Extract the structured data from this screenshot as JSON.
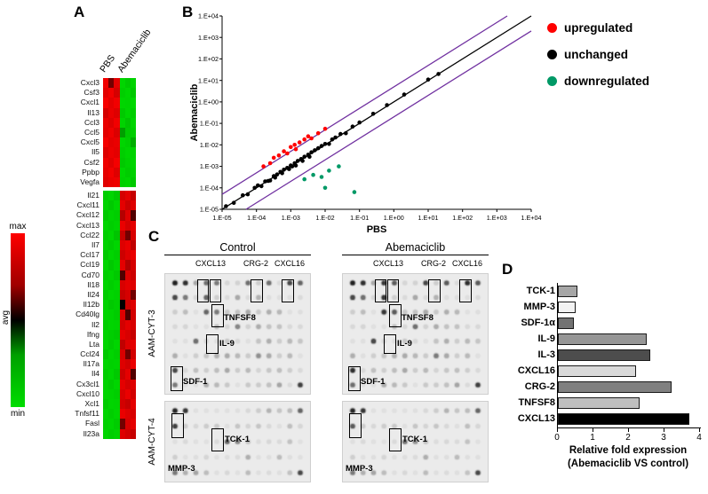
{
  "figure": {
    "panel_labels": {
      "a": "A",
      "b": "B",
      "c": "C",
      "d": "D"
    }
  },
  "panel_c": {
    "groups": [
      "Control",
      "Abemaciclib"
    ],
    "top_col_labels": [
      "CXCL13",
      "CRG-2",
      "CXCL16"
    ],
    "row_labels": [
      "AAM-CYT-3",
      "AAM-CYT-4"
    ],
    "top_annotations": [
      "TNFSF8",
      "IL-9",
      "SDF-1"
    ],
    "bottom_annotations": [
      "MMP-3",
      "TCK-1"
    ]
  },
  "chart_data": [
    {
      "type": "heatmap",
      "title": "Cytokine expression heatmap PBS vs Abemaciclib",
      "columns": [
        "PBS",
        "Abemaciclib"
      ],
      "colorscale": {
        "labels": [
          "max",
          "avg",
          "min"
        ],
        "max_color": "#ff0000",
        "mid_color": "#000000",
        "min_color": "#00dd00"
      },
      "rows": [
        {
          "gene": "Cxcl3",
          "values": [
            0.95,
            0.6,
            0.9,
            0.05,
            0.1,
            0.06
          ]
        },
        {
          "gene": "Csf3",
          "values": [
            0.9,
            0.95,
            0.85,
            0.08,
            0.05,
            0.1
          ]
        },
        {
          "gene": "Cxcl1",
          "values": [
            0.97,
            0.9,
            0.95,
            0.05,
            0.06,
            0.04
          ]
        },
        {
          "gene": "Il13",
          "values": [
            0.85,
            0.92,
            0.88,
            0.1,
            0.05,
            0.08
          ]
        },
        {
          "gene": "Ccl3",
          "values": [
            0.92,
            0.88,
            0.95,
            0.06,
            0.12,
            0.05
          ]
        },
        {
          "gene": "Ccl5",
          "values": [
            0.9,
            0.94,
            0.87,
            0.25,
            0.1,
            0.08
          ]
        },
        {
          "gene": "Cxcl5",
          "values": [
            0.96,
            0.9,
            0.92,
            0.05,
            0.08,
            0.2
          ]
        },
        {
          "gene": "Il5",
          "values": [
            0.88,
            0.93,
            0.9,
            0.08,
            0.05,
            0.06
          ]
        },
        {
          "gene": "Csf2",
          "values": [
            0.94,
            0.89,
            0.96,
            0.1,
            0.07,
            0.05
          ]
        },
        {
          "gene": "Ppbp",
          "values": [
            0.91,
            0.95,
            0.88,
            0.05,
            0.09,
            0.07
          ]
        },
        {
          "gene": "Vegfa",
          "values": [
            0.89,
            0.92,
            0.94,
            0.07,
            0.05,
            0.1
          ]
        },
        {
          "gene": "Il21",
          "values": [
            0.08,
            0.05,
            0.1,
            0.85,
            0.9,
            0.8
          ]
        },
        {
          "gene": "Cxcl11",
          "values": [
            0.06,
            0.1,
            0.05,
            0.9,
            0.82,
            0.88
          ]
        },
        {
          "gene": "Cxcl12",
          "values": [
            0.1,
            0.06,
            0.08,
            0.75,
            0.88,
            0.55
          ]
        },
        {
          "gene": "Cxcl13",
          "values": [
            0.05,
            0.08,
            0.06,
            0.92,
            0.85,
            0.9
          ]
        },
        {
          "gene": "Ccl22",
          "values": [
            0.08,
            0.05,
            0.12,
            0.8,
            0.6,
            0.86
          ]
        },
        {
          "gene": "Il7",
          "values": [
            0.06,
            0.09,
            0.05,
            0.88,
            0.92,
            0.78
          ]
        },
        {
          "gene": "Ccl17",
          "values": [
            0.1,
            0.05,
            0.08,
            0.82,
            0.88,
            0.92
          ]
        },
        {
          "gene": "Ccl19",
          "values": [
            0.05,
            0.1,
            0.06,
            0.9,
            0.75,
            0.85
          ]
        },
        {
          "gene": "Cd70",
          "values": [
            0.08,
            0.06,
            0.1,
            0.55,
            0.88,
            0.82
          ]
        },
        {
          "gene": "Il18",
          "values": [
            0.05,
            0.08,
            0.05,
            0.86,
            0.9,
            0.88
          ]
        },
        {
          "gene": "Il24",
          "values": [
            0.09,
            0.05,
            0.07,
            0.8,
            0.85,
            0.6
          ]
        },
        {
          "gene": "Il12b",
          "values": [
            0.06,
            0.1,
            0.08,
            0.5,
            0.82,
            0.88
          ]
        },
        {
          "gene": "Cd40lg",
          "values": [
            0.05,
            0.06,
            0.09,
            0.88,
            0.55,
            0.84
          ]
        },
        {
          "gene": "Il2",
          "values": [
            0.08,
            0.05,
            0.06,
            0.84,
            0.9,
            0.86
          ]
        },
        {
          "gene": "Ifng",
          "values": [
            0.06,
            0.08,
            0.1,
            0.9,
            0.86,
            0.8
          ]
        },
        {
          "gene": "Lta",
          "values": [
            0.05,
            0.09,
            0.05,
            0.78,
            0.88,
            0.9
          ]
        },
        {
          "gene": "Ccl24",
          "values": [
            0.1,
            0.05,
            0.08,
            0.86,
            0.6,
            0.84
          ]
        },
        {
          "gene": "Il17a",
          "values": [
            0.05,
            0.07,
            0.06,
            0.88,
            0.84,
            0.92
          ]
        },
        {
          "gene": "Il4",
          "values": [
            0.08,
            0.05,
            0.1,
            0.82,
            0.9,
            0.55
          ]
        },
        {
          "gene": "Cx3cl1",
          "values": [
            0.06,
            0.09,
            0.05,
            0.9,
            0.85,
            0.88
          ]
        },
        {
          "gene": "Cxcl10",
          "values": [
            0.05,
            0.06,
            0.08,
            0.86,
            0.92,
            0.84
          ]
        },
        {
          "gene": "Xcl1",
          "values": [
            0.09,
            0.05,
            0.06,
            0.84,
            0.8,
            0.9
          ]
        },
        {
          "gene": "Tnfsf11",
          "values": [
            0.05,
            0.08,
            0.05,
            0.92,
            0.88,
            0.86
          ]
        },
        {
          "gene": "Fasl",
          "values": [
            0.07,
            0.05,
            0.09,
            0.6,
            0.86,
            0.9
          ]
        },
        {
          "gene": "Il23a",
          "values": [
            0.05,
            0.08,
            0.06,
            0.88,
            0.84,
            0.8
          ]
        }
      ]
    },
    {
      "type": "scatter",
      "xlabel": "PBS",
      "ylabel": "Abemaciclib",
      "xscale": "log",
      "yscale": "log",
      "xlim": [
        1e-05,
        10000.0
      ],
      "ylim": [
        1e-05,
        10000.0
      ],
      "tick_labels": [
        "1.E-05",
        "1.E-04",
        "1.E-03",
        "1.E-02",
        "1.E-01",
        "1.E+00",
        "1.E+01",
        "1.E+02",
        "1.E+03",
        "1.E+04"
      ],
      "lines": [
        {
          "name": "identity",
          "color": "#000000",
          "factor": 1
        },
        {
          "name": "upper-bound",
          "color": "#7030a0",
          "factor": 5
        },
        {
          "name": "lower-bound",
          "color": "#7030a0",
          "factor": 0.2
        }
      ],
      "series": [
        {
          "name": "unchanged",
          "color": "#000000",
          "points": [
            [
              1.3e-05,
              1.4e-05
            ],
            [
              2.2e-05,
              2e-05
            ],
            [
              4e-05,
              4.5e-05
            ],
            [
              5.6e-05,
              5e-05
            ],
            [
              8.9e-05,
              0.0001
            ],
            [
              0.00011,
              0.00013
            ],
            [
              0.00014,
              0.00012
            ],
            [
              0.00018,
              0.0002
            ],
            [
              0.00022,
              0.00021
            ],
            [
              0.00025,
              0.00022
            ],
            [
              0.00032,
              0.00035
            ],
            [
              0.00035,
              0.0003
            ],
            [
              0.0004,
              0.00042
            ],
            [
              0.0005,
              0.00055
            ],
            [
              0.00056,
              0.00048
            ],
            [
              0.00063,
              0.0007
            ],
            [
              0.00079,
              0.00085
            ],
            [
              0.00089,
              0.00075
            ],
            [
              0.001,
              0.0011
            ],
            [
              0.0011,
              0.001
            ],
            [
              0.0013,
              0.0014
            ],
            [
              0.0014,
              0.0011
            ],
            [
              0.0016,
              0.0018
            ],
            [
              0.002,
              0.0022
            ],
            [
              0.0022,
              0.0018
            ],
            [
              0.0025,
              0.0028
            ],
            [
              0.0032,
              0.0035
            ],
            [
              0.0035,
              0.0028
            ],
            [
              0.004,
              0.0045
            ],
            [
              0.005,
              0.0056
            ],
            [
              0.0063,
              0.007
            ],
            [
              0.0079,
              0.0089
            ],
            [
              0.01,
              0.011
            ],
            [
              0.013,
              0.011
            ],
            [
              0.016,
              0.018
            ],
            [
              0.02,
              0.022
            ],
            [
              0.028,
              0.032
            ],
            [
              0.04,
              0.035
            ],
            [
              0.063,
              0.071
            ],
            [
              0.1,
              0.11
            ],
            [
              0.25,
              0.28
            ],
            [
              0.63,
              0.71
            ],
            [
              2.0,
              2.2
            ],
            [
              10,
              11
            ],
            [
              20,
              20
            ]
          ]
        },
        {
          "name": "upregulated",
          "color": "#ff0000",
          "points": [
            [
              0.00016,
              0.001
            ],
            [
              0.00025,
              0.0014
            ],
            [
              0.00032,
              0.0025
            ],
            [
              0.00045,
              0.0032
            ],
            [
              0.00063,
              0.005
            ],
            [
              0.00079,
              0.004
            ],
            [
              0.001,
              0.0079
            ],
            [
              0.0013,
              0.01
            ],
            [
              0.0014,
              0.0063
            ],
            [
              0.0018,
              0.013
            ],
            [
              0.0025,
              0.018
            ],
            [
              0.0032,
              0.025
            ],
            [
              0.004,
              0.02
            ],
            [
              0.0063,
              0.035
            ],
            [
              0.01,
              0.056
            ]
          ]
        },
        {
          "name": "downregulated",
          "color": "#009966",
          "points": [
            [
              0.0025,
              0.00025
            ],
            [
              0.0045,
              0.0004
            ],
            [
              0.0079,
              0.00032
            ],
            [
              0.013,
              0.00063
            ],
            [
              0.025,
              0.001
            ],
            [
              0.01,
              0.0001
            ],
            [
              0.071,
              6.3e-05
            ]
          ]
        }
      ],
      "legend": [
        "upregulated",
        "unchanged",
        "downregulated"
      ],
      "legend_colors": [
        "#ff0000",
        "#000000",
        "#009966"
      ]
    },
    {
      "type": "bar",
      "orientation": "horizontal",
      "categories": [
        "TCK-1",
        "MMP-3",
        "SDF-1α",
        "IL-9",
        "IL-3",
        "CXCL16",
        "CRG-2",
        "TNFSF8",
        "CXCL13"
      ],
      "values": [
        0.55,
        0.5,
        0.45,
        2.5,
        2.6,
        2.2,
        3.2,
        2.3,
        3.7
      ],
      "colors": [
        "#a6a6a6",
        "#f2f2f2",
        "#737373",
        "#969696",
        "#4d4d4d",
        "#d9d9d9",
        "#808080",
        "#bfbfbf",
        "#000000"
      ],
      "xlabel_line1": "Relative fold expression",
      "xlabel_line2": "(Abemaciclib VS control)",
      "xlim": [
        0,
        4
      ],
      "xticks": [
        0,
        1,
        2,
        3,
        4
      ]
    }
  ]
}
